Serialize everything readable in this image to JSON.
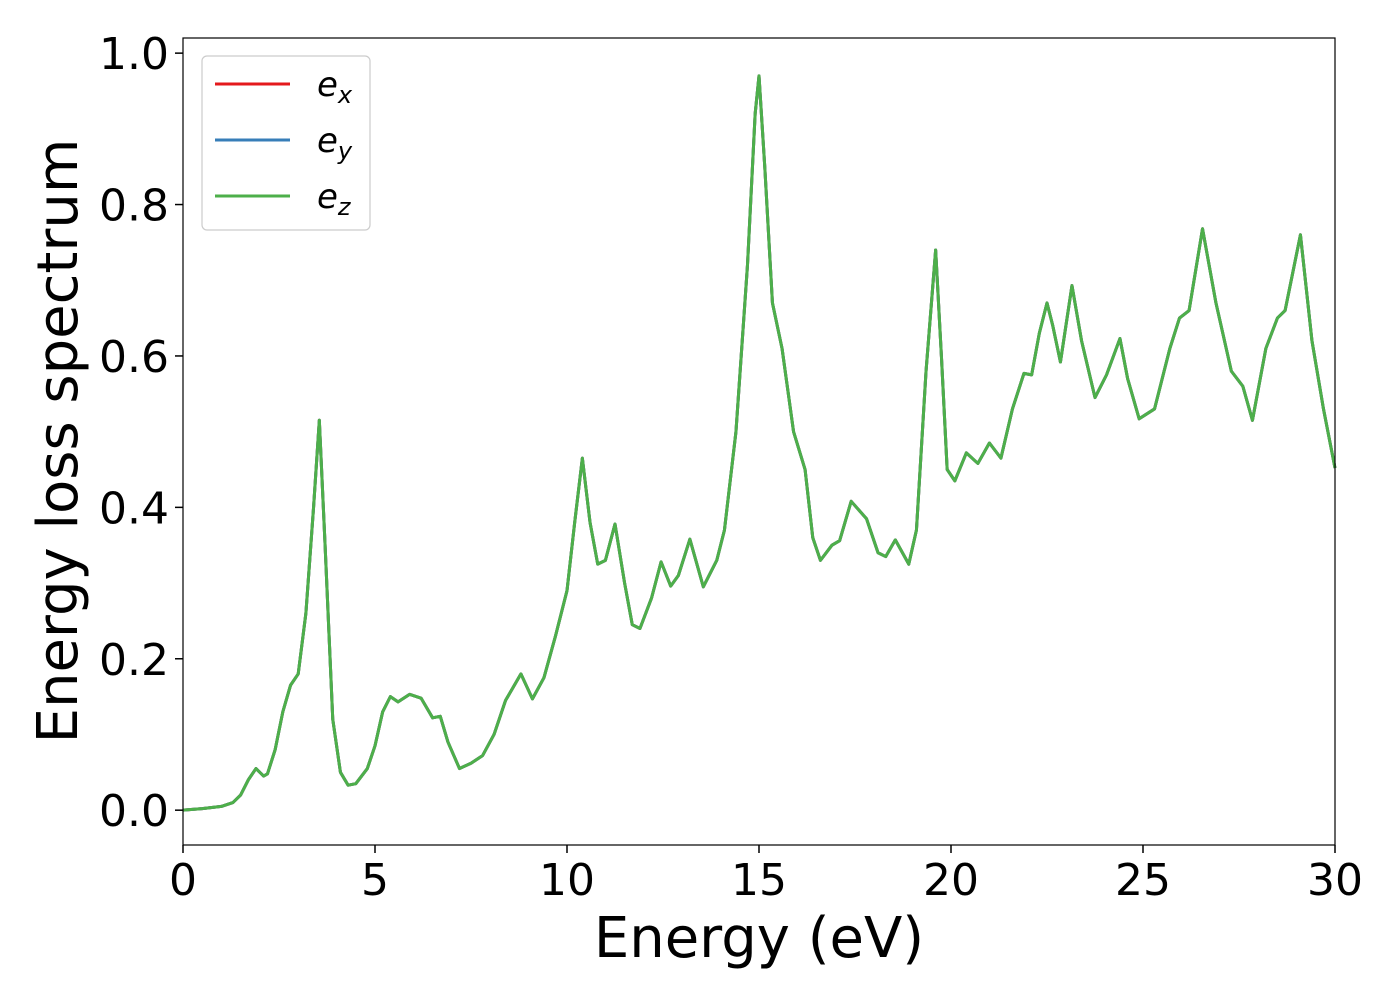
{
  "chart_data": {
    "type": "line",
    "xlabel": "Energy (eV)",
    "ylabel": "Energy loss spectrum",
    "xlim": [
      0,
      30
    ],
    "xticks": [
      0,
      5,
      10,
      15,
      20,
      25,
      30
    ],
    "ylim": [
      -0.046,
      1.02
    ],
    "yticks": [
      {
        "value": 0,
        "label": "0.0"
      },
      {
        "value": 0.2,
        "label": "0.2"
      },
      {
        "value": 0.4,
        "label": "0.4"
      },
      {
        "value": 0.6,
        "label": "0.6"
      },
      {
        "value": 0.8,
        "label": "0.8"
      },
      {
        "value": 1.0,
        "label": "1.0"
      }
    ],
    "grid": false,
    "legend": "upper left",
    "x": [
      0,
      0.5,
      1.0,
      1.3,
      1.5,
      1.7,
      1.9,
      2.1,
      2.2,
      2.4,
      2.6,
      2.8,
      3.0,
      3.2,
      3.4,
      3.55,
      3.7,
      3.9,
      4.1,
      4.3,
      4.5,
      4.8,
      5.0,
      5.2,
      5.4,
      5.6,
      5.9,
      6.2,
      6.5,
      6.7,
      6.9,
      7.2,
      7.5,
      7.8,
      8.1,
      8.4,
      8.8,
      9.1,
      9.4,
      9.7,
      10.0,
      10.2,
      10.4,
      10.6,
      10.8,
      11.0,
      11.25,
      11.5,
      11.7,
      11.9,
      12.2,
      12.45,
      12.7,
      12.9,
      13.2,
      13.55,
      13.9,
      14.1,
      14.4,
      14.7,
      14.9,
      15.0,
      15.15,
      15.35,
      15.6,
      15.9,
      16.2,
      16.4,
      16.6,
      16.9,
      17.1,
      17.4,
      17.8,
      18.1,
      18.3,
      18.55,
      18.9,
      19.1,
      19.35,
      19.6,
      19.75,
      19.9,
      20.1,
      20.4,
      20.7,
      21.0,
      21.3,
      21.6,
      21.9,
      22.1,
      22.3,
      22.5,
      22.65,
      22.85,
      23.15,
      23.4,
      23.75,
      24.05,
      24.4,
      24.6,
      24.9,
      25.3,
      25.7,
      25.95,
      26.2,
      26.55,
      26.9,
      27.3,
      27.6,
      27.85,
      28.2,
      28.5,
      28.7,
      29.1,
      29.4,
      29.7,
      30.0
    ],
    "series": [
      {
        "name": "ex",
        "color": "#e41a1c",
        "values": [
          0,
          0.002,
          0.005,
          0.01,
          0.02,
          0.04,
          0.055,
          0.045,
          0.048,
          0.08,
          0.13,
          0.165,
          0.18,
          0.26,
          0.4,
          0.515,
          0.35,
          0.12,
          0.05,
          0.033,
          0.035,
          0.055,
          0.085,
          0.13,
          0.15,
          0.143,
          0.153,
          0.148,
          0.122,
          0.124,
          0.09,
          0.055,
          0.062,
          0.072,
          0.1,
          0.145,
          0.18,
          0.147,
          0.175,
          0.23,
          0.29,
          0.38,
          0.465,
          0.38,
          0.325,
          0.33,
          0.378,
          0.3,
          0.245,
          0.24,
          0.28,
          0.328,
          0.296,
          0.31,
          0.358,
          0.295,
          0.33,
          0.37,
          0.5,
          0.72,
          0.92,
          0.97,
          0.85,
          0.67,
          0.61,
          0.5,
          0.45,
          0.36,
          0.33,
          0.35,
          0.356,
          0.408,
          0.385,
          0.34,
          0.335,
          0.357,
          0.325,
          0.37,
          0.58,
          0.74,
          0.6,
          0.45,
          0.435,
          0.472,
          0.458,
          0.485,
          0.465,
          0.53,
          0.577,
          0.575,
          0.63,
          0.67,
          0.64,
          0.592,
          0.693,
          0.62,
          0.545,
          0.575,
          0.623,
          0.57,
          0.517,
          0.53,
          0.61,
          0.65,
          0.66,
          0.768,
          0.67,
          0.58,
          0.56,
          0.515,
          0.61,
          0.65,
          0.66,
          0.76,
          0.62,
          0.53,
          0.452
        ]
      },
      {
        "name": "ey",
        "color": "#377eb8",
        "values": [
          0,
          0.002,
          0.005,
          0.01,
          0.02,
          0.04,
          0.055,
          0.045,
          0.048,
          0.08,
          0.13,
          0.165,
          0.18,
          0.26,
          0.4,
          0.515,
          0.35,
          0.12,
          0.05,
          0.033,
          0.035,
          0.055,
          0.085,
          0.13,
          0.15,
          0.143,
          0.153,
          0.148,
          0.122,
          0.124,
          0.09,
          0.055,
          0.062,
          0.072,
          0.1,
          0.145,
          0.18,
          0.147,
          0.175,
          0.23,
          0.29,
          0.38,
          0.465,
          0.38,
          0.325,
          0.33,
          0.378,
          0.3,
          0.245,
          0.24,
          0.28,
          0.328,
          0.296,
          0.31,
          0.358,
          0.295,
          0.33,
          0.37,
          0.5,
          0.72,
          0.92,
          0.97,
          0.85,
          0.67,
          0.61,
          0.5,
          0.45,
          0.36,
          0.33,
          0.35,
          0.356,
          0.408,
          0.385,
          0.34,
          0.335,
          0.357,
          0.325,
          0.37,
          0.58,
          0.74,
          0.6,
          0.45,
          0.435,
          0.472,
          0.458,
          0.485,
          0.465,
          0.53,
          0.577,
          0.575,
          0.63,
          0.67,
          0.64,
          0.592,
          0.693,
          0.62,
          0.545,
          0.575,
          0.623,
          0.57,
          0.517,
          0.53,
          0.61,
          0.65,
          0.66,
          0.768,
          0.67,
          0.58,
          0.56,
          0.515,
          0.61,
          0.65,
          0.66,
          0.76,
          0.62,
          0.53,
          0.452
        ]
      },
      {
        "name": "ez",
        "color": "#4daf4a",
        "values": [
          0,
          0.002,
          0.005,
          0.01,
          0.02,
          0.04,
          0.055,
          0.045,
          0.048,
          0.08,
          0.13,
          0.165,
          0.18,
          0.26,
          0.4,
          0.515,
          0.35,
          0.12,
          0.05,
          0.033,
          0.035,
          0.055,
          0.085,
          0.13,
          0.15,
          0.143,
          0.153,
          0.148,
          0.122,
          0.124,
          0.09,
          0.055,
          0.062,
          0.072,
          0.1,
          0.145,
          0.18,
          0.147,
          0.175,
          0.23,
          0.29,
          0.38,
          0.465,
          0.38,
          0.325,
          0.33,
          0.378,
          0.3,
          0.245,
          0.24,
          0.28,
          0.328,
          0.296,
          0.31,
          0.358,
          0.295,
          0.33,
          0.37,
          0.5,
          0.72,
          0.92,
          0.97,
          0.85,
          0.67,
          0.61,
          0.5,
          0.45,
          0.36,
          0.33,
          0.35,
          0.356,
          0.408,
          0.385,
          0.34,
          0.335,
          0.357,
          0.325,
          0.37,
          0.58,
          0.74,
          0.6,
          0.45,
          0.435,
          0.472,
          0.458,
          0.485,
          0.465,
          0.53,
          0.577,
          0.575,
          0.63,
          0.67,
          0.64,
          0.592,
          0.693,
          0.62,
          0.545,
          0.575,
          0.623,
          0.57,
          0.517,
          0.53,
          0.61,
          0.65,
          0.66,
          0.768,
          0.67,
          0.58,
          0.56,
          0.515,
          0.61,
          0.65,
          0.66,
          0.76,
          0.62,
          0.53,
          0.452
        ]
      }
    ]
  }
}
